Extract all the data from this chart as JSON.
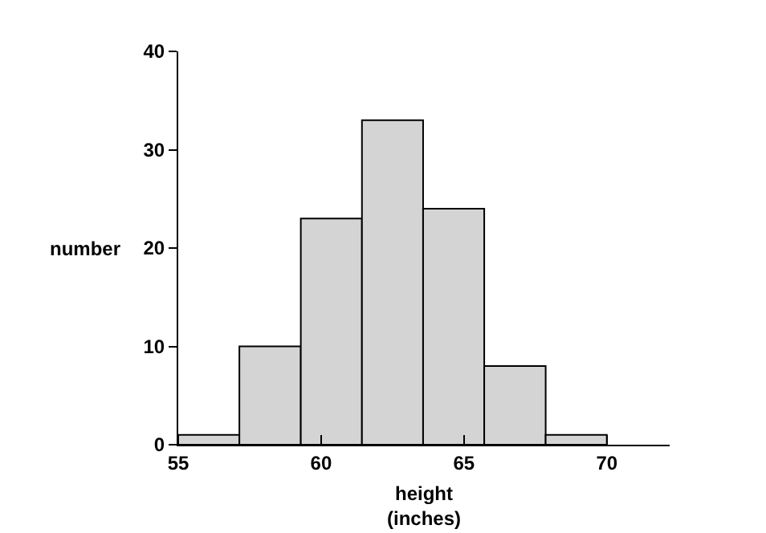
{
  "chart_data": {
    "type": "histogram",
    "xlabel": "height\n(inches)",
    "ylabel": "number",
    "bins": [
      55,
      57.14,
      59.29,
      61.43,
      63.57,
      65.71,
      67.86,
      70
    ],
    "values": [
      1,
      10,
      23,
      33,
      24,
      8,
      1
    ],
    "color": "#d4d4d4",
    "xlim": [
      55,
      72.2
    ],
    "xticks": [
      55,
      60,
      65,
      70
    ],
    "ylim": [
      0,
      40
    ],
    "yticks": [
      0,
      10,
      20,
      30,
      40
    ],
    "grid": false,
    "legend": false
  }
}
